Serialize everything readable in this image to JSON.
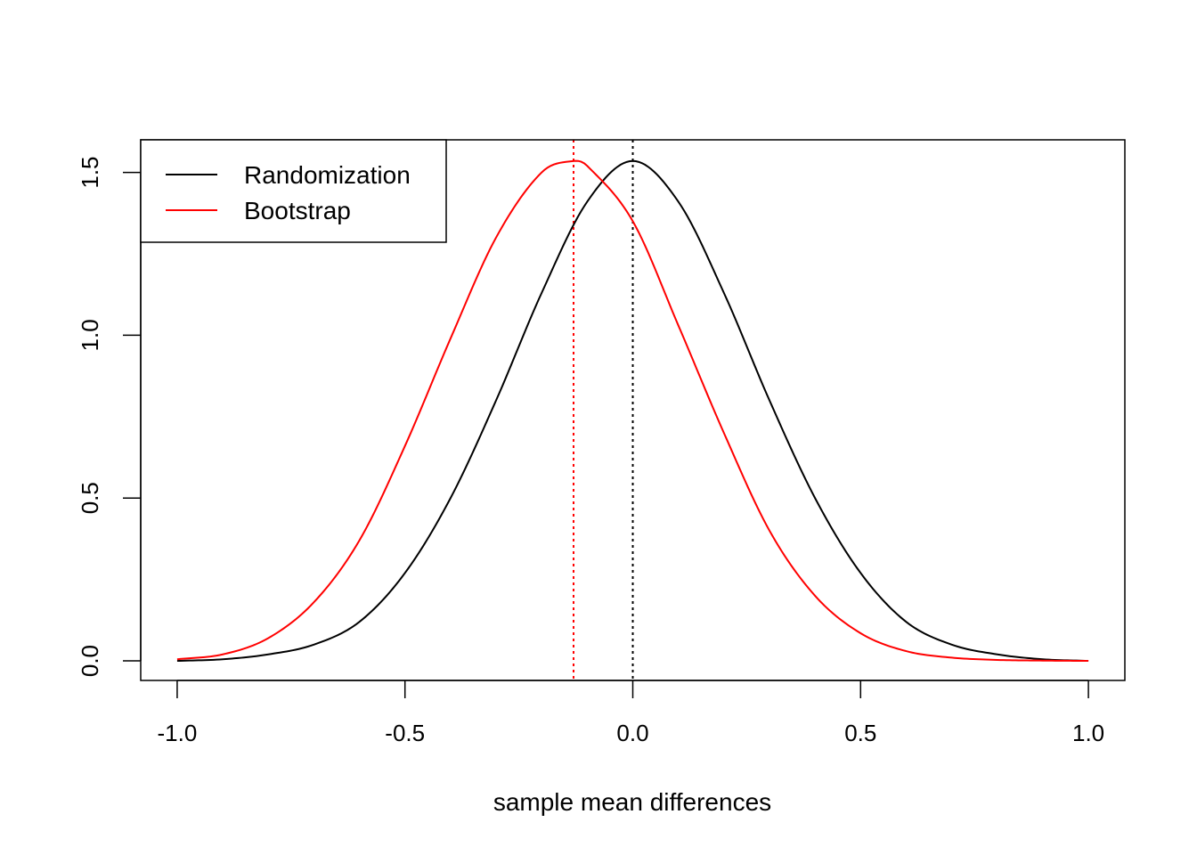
{
  "chart_data": {
    "type": "line",
    "title": "",
    "xlabel": "sample mean differences",
    "ylabel": "",
    "xlim": [
      -1.08,
      1.08
    ],
    "ylim": [
      -0.06,
      1.6
    ],
    "xticks": [
      -1.0,
      -0.5,
      0.0,
      0.5,
      1.0
    ],
    "xtick_labels": [
      "-1.0",
      "-0.5",
      "0.0",
      "0.5",
      "1.0"
    ],
    "yticks": [
      0.0,
      0.5,
      1.0,
      1.5
    ],
    "ytick_labels": [
      "0.0",
      "0.5",
      "1.0",
      "1.5"
    ],
    "grid": false,
    "legend_position": "top-left",
    "series": [
      {
        "name": "Randomization",
        "color": "#000000",
        "x": [
          -1.0,
          -0.9,
          -0.8,
          -0.7,
          -0.6,
          -0.5,
          -0.4,
          -0.3,
          -0.2,
          -0.1,
          0.0,
          0.1,
          0.2,
          0.3,
          0.4,
          0.5,
          0.6,
          0.7,
          0.8,
          0.9,
          1.0
        ],
        "y": [
          0.0,
          0.005,
          0.02,
          0.05,
          0.12,
          0.27,
          0.5,
          0.8,
          1.13,
          1.41,
          1.535,
          1.41,
          1.13,
          0.8,
          0.5,
          0.27,
          0.12,
          0.05,
          0.02,
          0.005,
          0.0
        ]
      },
      {
        "name": "Bootstrap",
        "color": "#ff0000",
        "x": [
          -1.0,
          -0.9,
          -0.8,
          -0.7,
          -0.6,
          -0.5,
          -0.4,
          -0.3,
          -0.2,
          -0.13,
          -0.1,
          0.0,
          0.1,
          0.2,
          0.3,
          0.4,
          0.5,
          0.6,
          0.7,
          0.8,
          0.9,
          1.0
        ],
        "y": [
          0.005,
          0.02,
          0.07,
          0.18,
          0.37,
          0.66,
          0.99,
          1.3,
          1.5,
          1.535,
          1.52,
          1.35,
          1.03,
          0.7,
          0.4,
          0.2,
          0.085,
          0.03,
          0.01,
          0.003,
          0.001,
          0.0
        ]
      }
    ],
    "vlines": [
      {
        "x": -0.13,
        "color": "#ff0000",
        "style": "dotted"
      },
      {
        "x": 0.0,
        "color": "#000000",
        "style": "dotted"
      }
    ]
  }
}
